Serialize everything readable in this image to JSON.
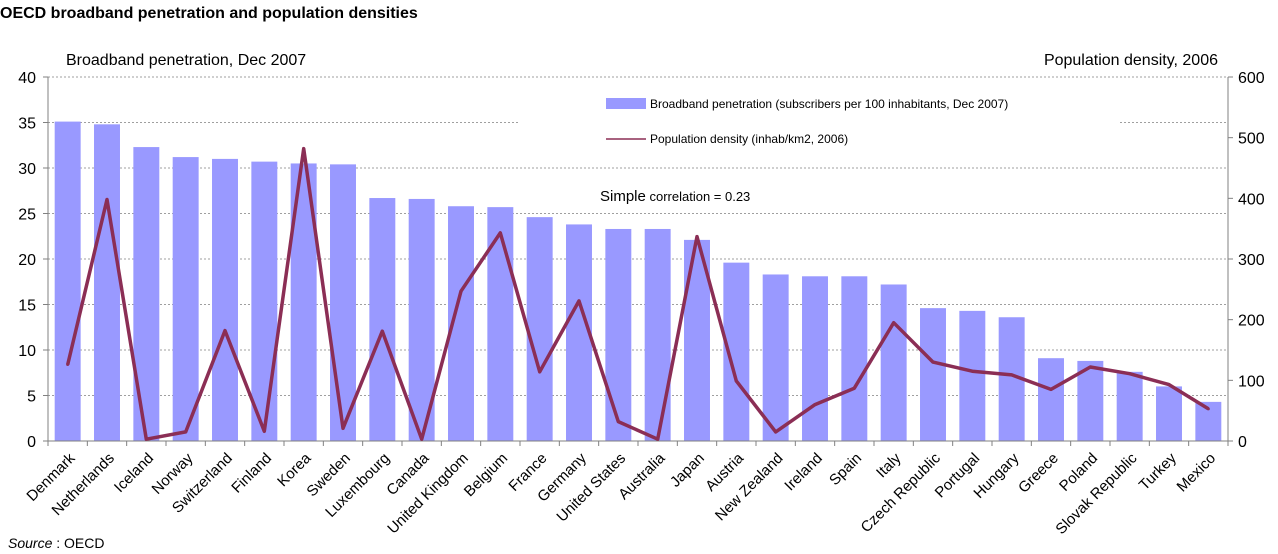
{
  "page": {
    "title": "OECD broadband penetration and population densities",
    "left_axis_title": "Broadband penetration, Dec 2007",
    "right_axis_title": "Population density, 2006",
    "source_label": "Source",
    "source_sep": " : ",
    "source_value": "OECD",
    "annotation_prefix": "Simple",
    "annotation_rest": " correlation = 0.23"
  },
  "chart_data": {
    "type": "bar",
    "title": "OECD broadband penetration and population densities",
    "categories": [
      "Denmark",
      "Netherlands",
      "Iceland",
      "Norway",
      "Switzerland",
      "Finland",
      "Korea",
      "Sweden",
      "Luxembourg",
      "Canada",
      "United Kingdom",
      "Belgium",
      "France",
      "Germany",
      "United States",
      "Australia",
      "Japan",
      "Austria",
      "New Zealand",
      "Ireland",
      "Spain",
      "Italy",
      "Czech Republic",
      "Portugal",
      "Hungary",
      "Greece",
      "Poland",
      "Slovak Republic",
      "Turkey",
      "Mexico"
    ],
    "series": [
      {
        "name": "Broadband penetration (subscribers per 100 inhabitants, Dec 2007)",
        "type": "bar",
        "axis": "left",
        "color": "#9999FF",
        "values": [
          35.1,
          34.8,
          32.3,
          31.2,
          31.0,
          30.7,
          30.5,
          30.4,
          26.7,
          26.6,
          25.8,
          25.7,
          24.6,
          23.8,
          23.3,
          23.3,
          22.1,
          19.6,
          18.3,
          18.1,
          18.1,
          17.2,
          14.6,
          14.3,
          13.6,
          9.1,
          8.8,
          7.6,
          6.0,
          4.3
        ]
      },
      {
        "name": "Population density (inhab/km2, 2006)",
        "type": "line",
        "axis": "right",
        "color": "#8B2E55",
        "values": [
          126,
          398,
          3,
          15,
          182,
          16,
          482,
          21,
          181,
          3,
          247,
          343,
          114,
          231,
          32,
          3,
          337,
          99,
          15,
          60,
          87,
          195,
          130,
          115,
          109,
          85,
          122,
          111,
          93,
          53
        ]
      }
    ],
    "left_axis": {
      "label": "Broadband penetration, Dec 2007",
      "ylim": [
        0,
        40
      ],
      "ticks": [
        0,
        5,
        10,
        15,
        20,
        25,
        30,
        35,
        40
      ]
    },
    "right_axis": {
      "label": "Population density, 2006",
      "ylim": [
        0,
        600
      ],
      "ticks": [
        0,
        100,
        200,
        300,
        400,
        500,
        600
      ]
    },
    "grid": "horizontal dashed",
    "legend_position": "top-right"
  }
}
